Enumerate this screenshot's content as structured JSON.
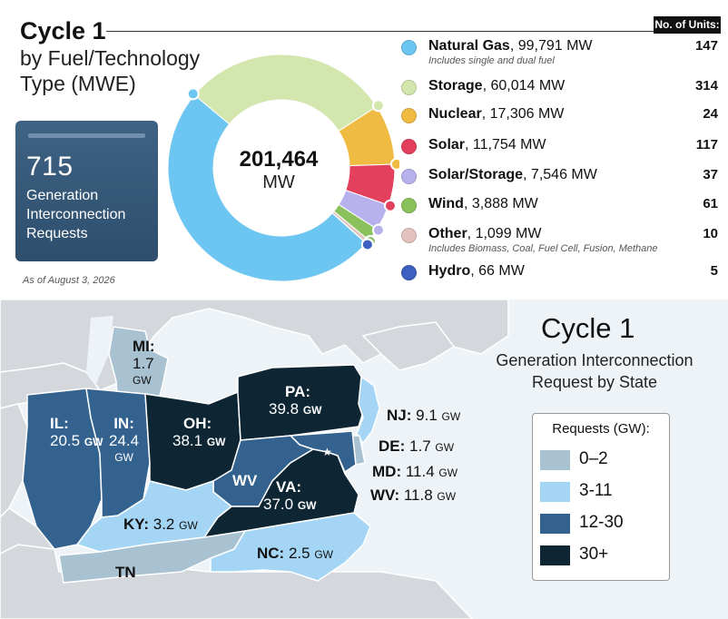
{
  "header": {
    "title": "Cycle 1",
    "subtitle": "by Fuel/Technology Type (MWE)",
    "units_header": "No. of Units:"
  },
  "summary": {
    "count": "715",
    "label": "Generation Interconnection Requests",
    "as_of": "As of August 3, 2026"
  },
  "donut": {
    "total": "201,464",
    "unit": "MW"
  },
  "chart_data": {
    "type": "pie",
    "variant": "donut",
    "total_mw": 201464,
    "categories": [
      "Natural Gas",
      "Storage",
      "Nuclear",
      "Solar",
      "Solar/Storage",
      "Wind",
      "Other",
      "Hydro"
    ],
    "values": [
      99791,
      60014,
      17306,
      11754,
      7546,
      3888,
      1099,
      66
    ],
    "colors": [
      "#6dc6f1",
      "#d3e6ad",
      "#efbb43",
      "#e3405d",
      "#b7b2ee",
      "#8ac15c",
      "#e3c3c0",
      "#3d5fbf"
    ]
  },
  "legend": [
    {
      "name": "Natural Gas",
      "value": "99,791 MW",
      "note": "Includes single and dual fuel",
      "units": "147",
      "color": "#6dc6f1"
    },
    {
      "name": "Storage",
      "value": "60,014 MW",
      "note": "",
      "units": "314",
      "color": "#d3e6ad"
    },
    {
      "name": "Nuclear",
      "value": "17,306 MW",
      "note": "",
      "units": "24",
      "color": "#efbb43"
    },
    {
      "name": "Solar",
      "value": "11,754 MW",
      "note": "",
      "units": "117",
      "color": "#e3405d"
    },
    {
      "name": "Solar/Storage",
      "value": "7,546 MW",
      "note": "",
      "units": "37",
      "color": "#b7b2ee"
    },
    {
      "name": "Wind",
      "value": "3,888 MW",
      "note": "",
      "units": "61",
      "color": "#8ac15c"
    },
    {
      "name": "Other",
      "value": "1,099 MW",
      "note": "Includes Biomass, Coal, Fuel Cell, Fusion, Methane",
      "units": "10",
      "color": "#e3c3c0"
    },
    {
      "name": "Hydro",
      "value": "66 MW",
      "note": "",
      "units": "5",
      "color": "#3d5fbf"
    }
  ],
  "map": {
    "title": "Cycle 1",
    "subtitle": "Generation Interconnection Request by State",
    "legend_header": "Requests (GW):",
    "bins": [
      {
        "label": "0–2",
        "color": "#a9c2d1"
      },
      {
        "label": "3-11",
        "color": "#a4d5f5"
      },
      {
        "label": "12-30",
        "color": "#33628f"
      },
      {
        "label": "30+",
        "color": "#0e2533"
      }
    ],
    "states": {
      "MI": {
        "abbr": "MI:",
        "value": "1.7",
        "unit": "GW"
      },
      "IL": {
        "abbr": "IL:",
        "value": "20.5",
        "unit": "GW"
      },
      "IN": {
        "abbr": "IN:",
        "value": "24.4",
        "unit": "GW"
      },
      "OH": {
        "abbr": "OH:",
        "value": "38.1",
        "unit": "GW"
      },
      "PA": {
        "abbr": "PA:",
        "value": "39.8",
        "unit": "GW"
      },
      "NJ": {
        "abbr": "NJ:",
        "value": "9.1",
        "unit": "GW"
      },
      "DE": {
        "abbr": "DE:",
        "value": "1.7",
        "unit": "GW"
      },
      "MD": {
        "abbr": "MD:",
        "value": "11.4",
        "unit": "GW"
      },
      "WV": {
        "abbr": "WV:",
        "value": "11.8",
        "unit": "GW",
        "map_label": "WV"
      },
      "VA": {
        "abbr": "VA:",
        "value": "37.0",
        "unit": "GW"
      },
      "KY": {
        "abbr": "KY:",
        "value": "3.2",
        "unit": "GW"
      },
      "NC": {
        "abbr": "NC:",
        "value": "2.5",
        "unit": "GW"
      },
      "TN": {
        "abbr": "TN"
      }
    }
  }
}
